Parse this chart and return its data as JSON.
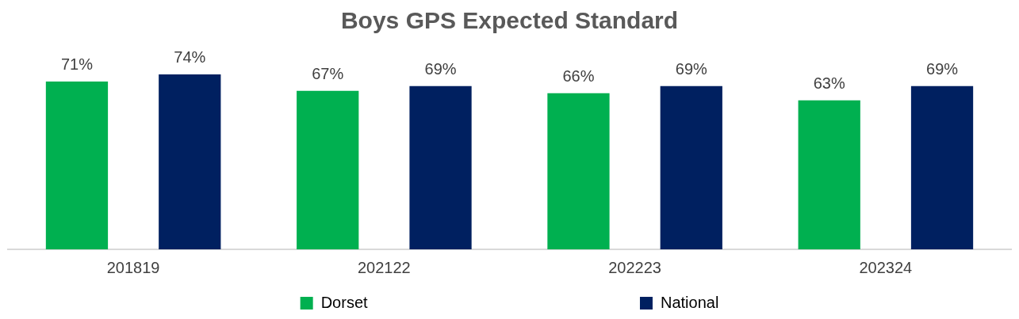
{
  "chart_data": {
    "type": "bar",
    "title": "Boys GPS Expected Standard",
    "categories": [
      "201819",
      "202122",
      "202223",
      "202324"
    ],
    "series": [
      {
        "name": "Dorset",
        "color": "#00b050",
        "values": [
          71,
          67,
          66,
          63
        ],
        "value_labels": [
          "71%",
          "67%",
          "66%",
          "63%"
        ]
      },
      {
        "name": "National",
        "color": "#002060",
        "values": [
          74,
          69,
          69,
          69
        ],
        "value_labels": [
          "74%",
          "69%",
          "69%",
          "69%"
        ]
      }
    ],
    "tick_labels": "x",
    "grid": false,
    "legend": "bottom"
  }
}
